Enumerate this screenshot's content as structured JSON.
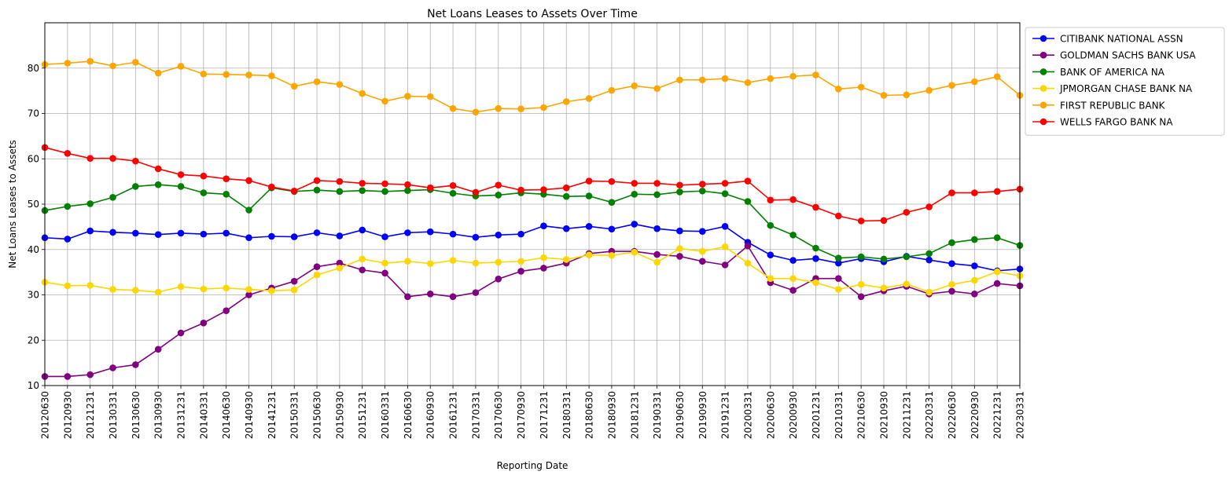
{
  "chart_data": {
    "type": "line",
    "title": "Net Loans Leases to Assets Over Time",
    "xlabel": "Reporting Date",
    "ylabel": "Net Loans Leases to Assets",
    "ylim": [
      10,
      90
    ],
    "yticks": [
      10,
      20,
      30,
      40,
      50,
      60,
      70,
      80
    ],
    "grid": true,
    "legend_position": "outside-top-right",
    "categories": [
      "20120630",
      "20120930",
      "20121231",
      "20130331",
      "20130630",
      "20130930",
      "20131231",
      "20140331",
      "20140630",
      "20140930",
      "20141231",
      "20150331",
      "20150630",
      "20150930",
      "20151231",
      "20160331",
      "20160630",
      "20160930",
      "20161231",
      "20170331",
      "20170630",
      "20170930",
      "20171231",
      "20180331",
      "20180630",
      "20180930",
      "20181231",
      "20190331",
      "20190630",
      "20190930",
      "20191231",
      "20200331",
      "20200630",
      "20200930",
      "20201231",
      "20210331",
      "20210630",
      "20210930",
      "20211231",
      "20220331",
      "20220630",
      "20220930",
      "20221231",
      "20230331"
    ],
    "series": [
      {
        "name": "CITIBANK NATIONAL ASSN",
        "color": "#0000ff",
        "values": [
          42.6,
          42.3,
          44.1,
          43.8,
          43.6,
          43.3,
          43.6,
          43.4,
          43.6,
          42.6,
          42.9,
          42.8,
          43.7,
          43.0,
          44.3,
          42.8,
          43.7,
          43.9,
          43.4,
          42.7,
          43.2,
          43.4,
          45.2,
          44.6,
          45.1,
          44.5,
          45.6,
          44.6,
          44.1,
          44.0,
          45.1,
          41.6,
          38.8,
          37.6,
          38.0,
          37.0,
          38.0,
          37.3,
          38.5,
          37.7,
          36.9,
          36.4,
          35.3,
          35.7
        ]
      },
      {
        "name": "GOLDMAN SACHS BANK USA",
        "color": "#800080",
        "values": [
          12.0,
          12.0,
          12.4,
          13.9,
          14.6,
          18.0,
          21.6,
          23.8,
          26.5,
          30.0,
          31.5,
          33.0,
          36.2,
          37.0,
          35.5,
          34.8,
          29.6,
          30.2,
          29.6,
          30.5,
          33.5,
          35.2,
          35.9,
          37.0,
          39.1,
          39.6,
          39.6,
          38.9,
          38.5,
          37.4,
          36.6,
          40.8,
          32.7,
          31.0,
          33.6,
          33.6,
          29.6,
          30.9,
          31.9,
          30.2,
          30.8,
          30.2,
          32.5,
          32.0
        ]
      },
      {
        "name": "BANK OF AMERICA NA",
        "color": "#008000",
        "values": [
          48.6,
          49.5,
          50.1,
          51.5,
          53.9,
          54.3,
          53.9,
          52.5,
          52.2,
          48.7,
          53.6,
          52.8,
          53.1,
          52.8,
          53.0,
          52.8,
          53.0,
          53.2,
          52.4,
          51.8,
          52.0,
          52.5,
          52.2,
          51.7,
          51.8,
          50.4,
          52.2,
          52.1,
          52.7,
          52.9,
          52.3,
          50.6,
          45.3,
          43.2,
          40.3,
          38.1,
          38.4,
          37.9,
          38.4,
          39.1,
          41.5,
          42.2,
          42.6,
          40.9
        ]
      },
      {
        "name": "JPMORGAN CHASE BANK NA",
        "color": "#ffd700",
        "values": [
          32.8,
          32.0,
          32.1,
          31.2,
          31.0,
          30.6,
          31.8,
          31.3,
          31.5,
          31.2,
          30.9,
          31.1,
          34.4,
          35.9,
          37.9,
          37.0,
          37.4,
          36.9,
          37.6,
          37.0,
          37.2,
          37.4,
          38.2,
          37.8,
          38.8,
          38.7,
          39.4,
          37.2,
          40.2,
          39.6,
          40.6,
          37.0,
          33.6,
          33.6,
          32.7,
          31.2,
          32.3,
          31.5,
          32.4,
          30.6,
          32.3,
          33.2,
          35.1,
          34.2
        ]
      },
      {
        "name": "FIRST REPUBLIC BANK",
        "color": "#ffa500",
        "values": [
          80.8,
          81.1,
          81.5,
          80.5,
          81.3,
          78.9,
          80.4,
          78.7,
          78.6,
          78.5,
          78.3,
          76.0,
          77.0,
          76.4,
          74.4,
          72.7,
          73.8,
          73.7,
          71.1,
          70.3,
          71.1,
          71.0,
          71.3,
          72.6,
          73.3,
          75.1,
          76.1,
          75.5,
          77.4,
          77.4,
          77.7,
          76.8,
          77.7,
          78.2,
          78.5,
          75.4,
          75.8,
          74.0,
          74.1,
          75.1,
          76.2,
          77.0,
          78.1,
          74.0
        ]
      },
      {
        "name": "WELLS FARGO BANK NA",
        "color": "#ff0000",
        "values": [
          62.5,
          61.2,
          60.1,
          60.1,
          59.5,
          57.8,
          56.5,
          56.2,
          55.6,
          55.2,
          53.8,
          52.9,
          55.2,
          55.0,
          54.6,
          54.5,
          54.3,
          53.6,
          54.1,
          52.6,
          54.2,
          53.1,
          53.2,
          53.6,
          55.1,
          55.0,
          54.6,
          54.6,
          54.2,
          54.4,
          54.6,
          55.1,
          50.9,
          51.0,
          49.3,
          47.4,
          46.3,
          46.4,
          48.2,
          49.4,
          52.5,
          52.5,
          52.8,
          53.3
        ]
      }
    ]
  }
}
